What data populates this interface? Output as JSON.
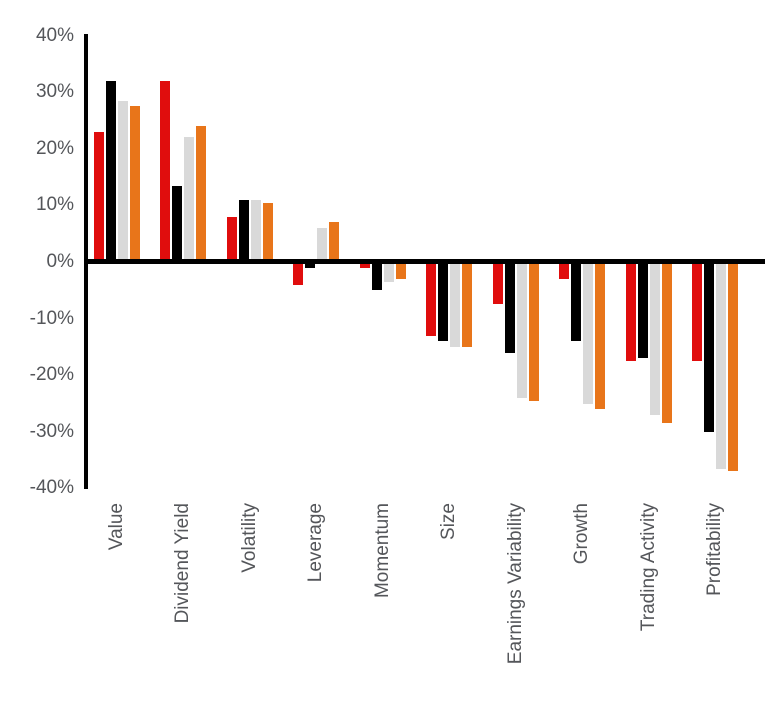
{
  "chart_data": {
    "type": "bar",
    "title": "",
    "xlabel": "",
    "ylabel": "",
    "categories": [
      "Value",
      "Dividend Yield",
      "Volatility",
      "Leverage",
      "Momentum",
      "Size",
      "Earnings Variability",
      "Growth",
      "Trading Activity",
      "Profitability"
    ],
    "series": [
      {
        "name": "red-series",
        "color": "#e00d0d",
        "values": [
          23,
          32,
          8,
          -4,
          -1,
          -13,
          -7.5,
          -3,
          -17.5,
          -17.5
        ]
      },
      {
        "name": "black-series",
        "color": "#000000",
        "values": [
          32,
          13.5,
          11,
          -1,
          -5,
          -14,
          -16,
          -14,
          -17,
          -30
        ]
      },
      {
        "name": "gray-series",
        "color": "#d9d9d9",
        "values": [
          28.5,
          22,
          11,
          6,
          -3.5,
          -15,
          -24,
          -25,
          -27,
          -36.5
        ]
      },
      {
        "name": "orange-series",
        "color": "#e8751a",
        "values": [
          27.5,
          24,
          10.5,
          7,
          -3,
          -15,
          -24.5,
          -26,
          -28.5,
          -37
        ]
      }
    ],
    "y_axis": {
      "min": -40,
      "max": 40,
      "step": 10,
      "tick_values": [
        40,
        30,
        20,
        10,
        0,
        -10,
        -20,
        -30,
        -40
      ],
      "tick_labels": [
        "40%",
        "30%",
        "20%",
        "10%",
        "0%",
        "-10%",
        "-20%",
        "-30%",
        "-40%"
      ]
    },
    "legend": "none",
    "grid": "off",
    "x_label_rotation": "90deg-counterclockwise"
  }
}
